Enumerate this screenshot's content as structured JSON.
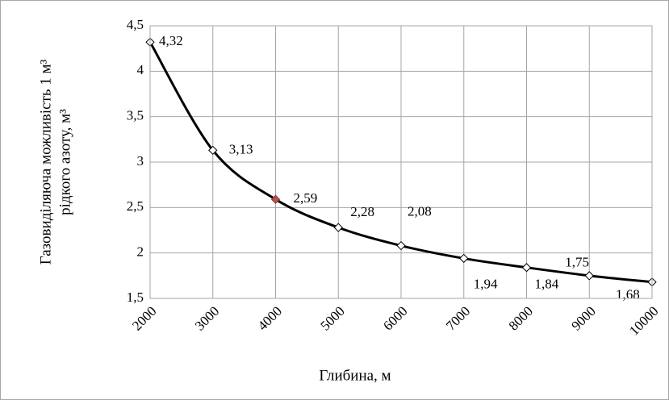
{
  "chart_data": {
    "type": "line",
    "xlabel": "Глибина, м",
    "ylabel": [
      "Газовиділяюча можливість 1 м³",
      "рідкого азоту, м³"
    ],
    "x": [
      2000,
      3000,
      4000,
      5000,
      6000,
      7000,
      8000,
      9000,
      10000
    ],
    "series": [
      {
        "name": "",
        "color": "#000000",
        "values": [
          4.32,
          3.13,
          2.59,
          2.28,
          2.08,
          1.94,
          1.84,
          1.75,
          1.68
        ],
        "value_labels": [
          "4,32",
          "3,13",
          "2,59",
          "2,28",
          "2,08",
          "1,94",
          "1,84",
          "1,75",
          "1,68"
        ],
        "marker_colors": [
          "#000000",
          "#000000",
          "#c0504d",
          "#000000",
          "#000000",
          "#000000",
          "#000000",
          "#000000",
          "#000000"
        ]
      }
    ],
    "xlim": [
      2000,
      10000
    ],
    "xticks": [
      2000,
      3000,
      4000,
      5000,
      6000,
      7000,
      8000,
      9000,
      10000
    ],
    "ylim": [
      1.5,
      4.5
    ],
    "yticks": [
      {
        "value": 1.5,
        "label": "1,5"
      },
      2,
      {
        "value": 2.5,
        "label": "2,5"
      },
      3,
      {
        "value": 3.5,
        "label": "3,5"
      },
      4,
      {
        "value": 4.5,
        "label": "4,5"
      }
    ],
    "grid": true
  }
}
